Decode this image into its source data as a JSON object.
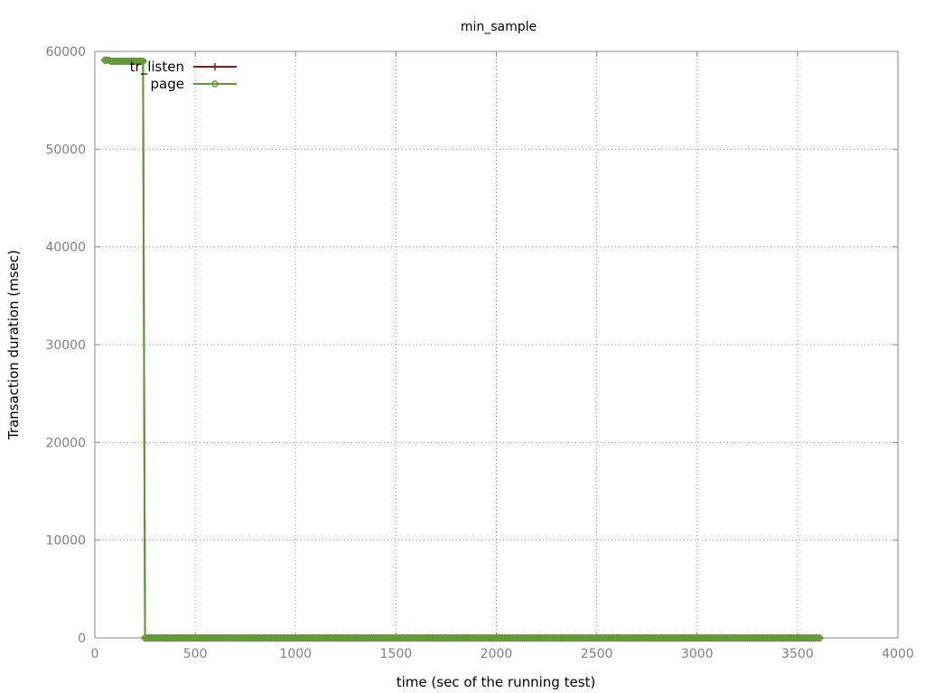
{
  "chart_data": {
    "type": "line",
    "title": "min_sample",
    "xlabel": "time (sec of the running test)",
    "ylabel": "Transaction duration (msec)",
    "xlim": [
      0,
      4000
    ],
    "ylim": [
      0,
      60000
    ],
    "x_ticks": [
      0,
      500,
      1000,
      1500,
      2000,
      2500,
      3000,
      3500,
      4000
    ],
    "y_ticks": [
      0,
      10000,
      20000,
      30000,
      40000,
      50000,
      60000
    ],
    "grid": true,
    "legend_position": "top-left",
    "sampling": {
      "interval_sec": 10,
      "x_start": 50,
      "x_end": 3610
    },
    "series": [
      {
        "name": "tr_listen",
        "color": "#8b1a1a",
        "marker": "plus",
        "segments": [
          {
            "x_from": 50,
            "x_to": 70,
            "value": 59100
          },
          {
            "x_from": 80,
            "x_to": 240,
            "value": 59000
          },
          {
            "x_from": 250,
            "x_to": 3610,
            "value": 0
          }
        ]
      },
      {
        "name": "page",
        "color": "#5e9c36",
        "marker": "circle",
        "segments": [
          {
            "x_from": 50,
            "x_to": 70,
            "value": 59100
          },
          {
            "x_from": 80,
            "x_to": 240,
            "value": 59000
          },
          {
            "x_from": 250,
            "x_to": 3610,
            "value": 0
          }
        ]
      }
    ]
  }
}
